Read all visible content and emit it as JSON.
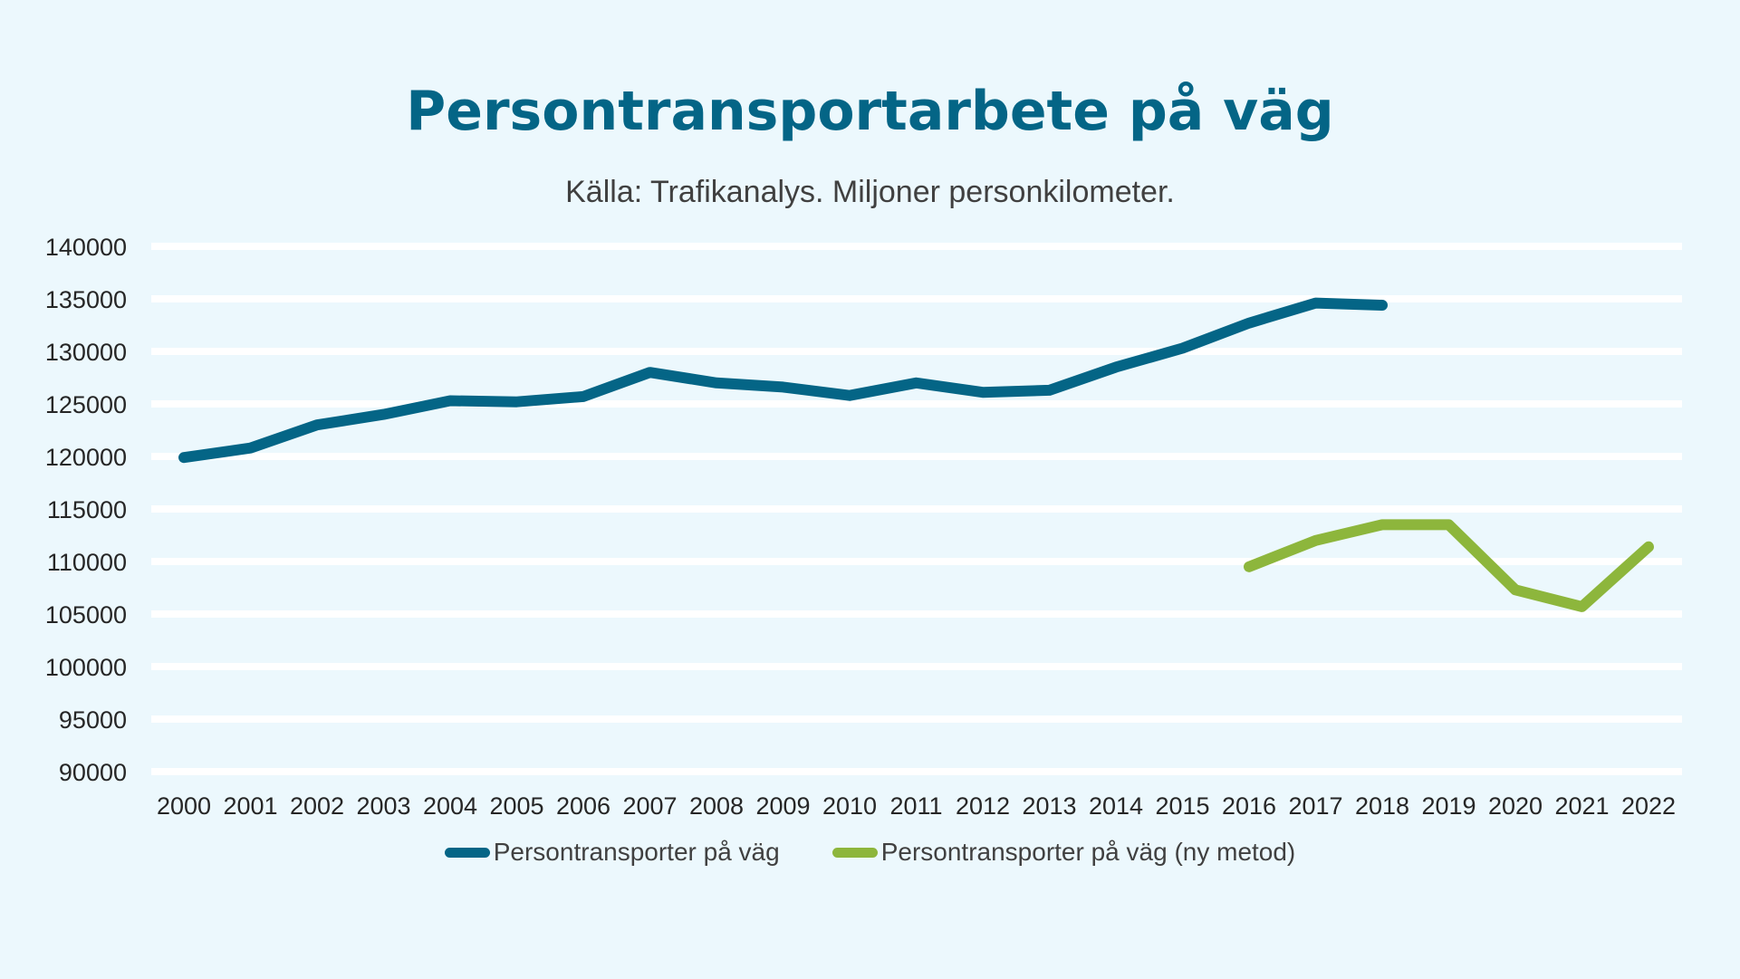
{
  "chart_data": {
    "type": "line",
    "title": "Persontransportarbete på väg",
    "subtitle": "Källa: Trafikanalys. Miljoner personkilometer.",
    "xlabel": "",
    "ylabel": "",
    "categories": [
      "2000",
      "2001",
      "2002",
      "2003",
      "2004",
      "2005",
      "2006",
      "2007",
      "2008",
      "2009",
      "2010",
      "2011",
      "2012",
      "2013",
      "2014",
      "2015",
      "2016",
      "2017",
      "2018",
      "2019",
      "2020",
      "2021",
      "2022"
    ],
    "ylim": [
      90000,
      140000
    ],
    "yticks": [
      90000,
      95000,
      100000,
      105000,
      110000,
      115000,
      120000,
      125000,
      130000,
      135000,
      140000
    ],
    "grid": true,
    "legend_position": "bottom",
    "series": [
      {
        "name": "Persontransporter på väg",
        "color": "#046586",
        "values": [
          119900,
          120800,
          123000,
          124000,
          125300,
          125200,
          125700,
          128000,
          127000,
          126600,
          125800,
          127000,
          126100,
          126300,
          128500,
          130300,
          132700,
          134600,
          134400,
          null,
          null,
          null,
          null
        ]
      },
      {
        "name": "Persontransporter på väg (ny metod)",
        "color": "#8db63c",
        "values": [
          null,
          null,
          null,
          null,
          null,
          null,
          null,
          null,
          null,
          null,
          null,
          null,
          null,
          null,
          null,
          null,
          109500,
          112000,
          113500,
          113500,
          107300,
          105700,
          111400
        ]
      }
    ]
  }
}
